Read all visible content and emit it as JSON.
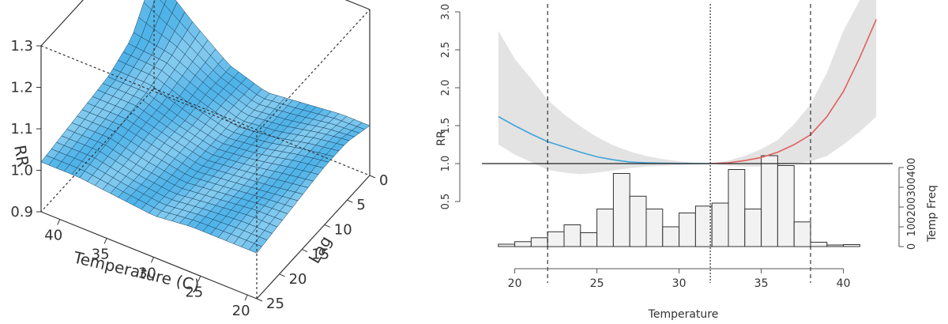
{
  "chart_data": [
    {
      "type": "surface",
      "zlabel": "RR",
      "xlabel": "Temperature (C)",
      "ylabel": "Lag",
      "z_ticks": [
        "0.9",
        "1.0",
        "1.1",
        "1.2",
        "1.3"
      ],
      "x_ticks": [
        "40",
        "35",
        "30",
        "25",
        "20"
      ],
      "y_ticks": [
        "0",
        "5",
        "10",
        "15",
        "20",
        "25"
      ],
      "zlim": [
        0.9,
        1.3
      ],
      "xlim": [
        42,
        19
      ],
      "ylim": [
        0,
        25
      ],
      "surface_color": "#4fb3e8",
      "edge_color": "#1a3f5c",
      "surface_rr_grid": {
        "temperature": [
          42,
          38,
          34,
          30,
          26,
          22,
          19
        ],
        "lag": [
          0,
          5,
          10,
          15,
          20,
          25
        ],
        "rr": [
          [
            1.18,
            1.08,
            1.05,
            1.04,
            1.03,
            1.02
          ],
          [
            1.1,
            1.07,
            1.05,
            1.04,
            1.03,
            1.02
          ],
          [
            1.03,
            1.03,
            1.02,
            1.02,
            1.01,
            1.01
          ],
          [
            1.0,
            1.0,
            1.0,
            1.0,
            1.0,
            1.0
          ],
          [
            1.01,
            1.01,
            1.01,
            1.01,
            1.01,
            1.01
          ],
          [
            1.02,
            1.03,
            1.03,
            1.02,
            1.02,
            1.01
          ],
          [
            1.02,
            1.04,
            1.04,
            1.03,
            1.02,
            1.01
          ]
        ]
      }
    },
    {
      "type": "line",
      "xlabel": "Temperature",
      "ylabel": "RR",
      "y2label": "Temp Freq",
      "xlim": [
        18,
        43
      ],
      "ylim": [
        0,
        3.0
      ],
      "x_ticks": [
        "20",
        "25",
        "30",
        "35",
        "40"
      ],
      "y_ticks": [
        "0.5",
        "1.0",
        "1.5",
        "2.0",
        "2.5",
        "3.0"
      ],
      "y2_ticks": [
        "0",
        "100",
        "200",
        "300",
        "400"
      ],
      "reference_line": 1.0,
      "vlines_dashed": [
        22,
        38
      ],
      "vline_dotted": 31.9,
      "series": [
        {
          "color": "#3fa4d8",
          "x": [
            19,
            20,
            21,
            22,
            23,
            24,
            25,
            26,
            27,
            28,
            29,
            30,
            31,
            31.9
          ],
          "y": [
            1.62,
            1.5,
            1.39,
            1.29,
            1.22,
            1.15,
            1.09,
            1.05,
            1.02,
            1.01,
            1.005,
            1.002,
            1.0,
            1.0
          ],
          "ci_low": [
            1.25,
            1.12,
            1.02,
            0.92,
            0.88,
            0.86,
            0.88,
            0.91,
            0.94,
            0.96,
            0.97,
            0.98,
            0.99,
            1.0
          ],
          "ci_high": [
            2.75,
            2.38,
            2.12,
            1.84,
            1.65,
            1.49,
            1.35,
            1.24,
            1.16,
            1.1,
            1.06,
            1.03,
            1.01,
            1.0
          ]
        },
        {
          "color": "#e0605a",
          "x": [
            31.9,
            33,
            34,
            35,
            36,
            37,
            38,
            39,
            40,
            41,
            42
          ],
          "y": [
            1.0,
            1.01,
            1.04,
            1.08,
            1.15,
            1.25,
            1.38,
            1.62,
            1.95,
            2.4,
            2.9
          ],
          "ci_low": [
            1.0,
            0.97,
            0.96,
            0.96,
            0.98,
            1.0,
            1.03,
            1.1,
            1.25,
            1.42,
            1.62
          ],
          "ci_high": [
            1.0,
            1.04,
            1.1,
            1.19,
            1.31,
            1.52,
            1.78,
            2.2,
            2.75,
            3.2,
            3.2
          ]
        }
      ],
      "histogram": {
        "bin_edges": [
          19,
          20,
          21,
          22,
          23,
          24,
          25,
          26,
          27,
          28,
          29,
          30,
          31,
          32,
          33,
          34,
          35,
          36,
          37,
          38,
          39,
          40,
          41,
          42
        ],
        "counts": [
          12,
          25,
          45,
          75,
          110,
          70,
          190,
          370,
          255,
          190,
          100,
          170,
          205,
          220,
          390,
          190,
          460,
          410,
          125,
          22,
          8,
          10,
          0
        ]
      }
    }
  ]
}
